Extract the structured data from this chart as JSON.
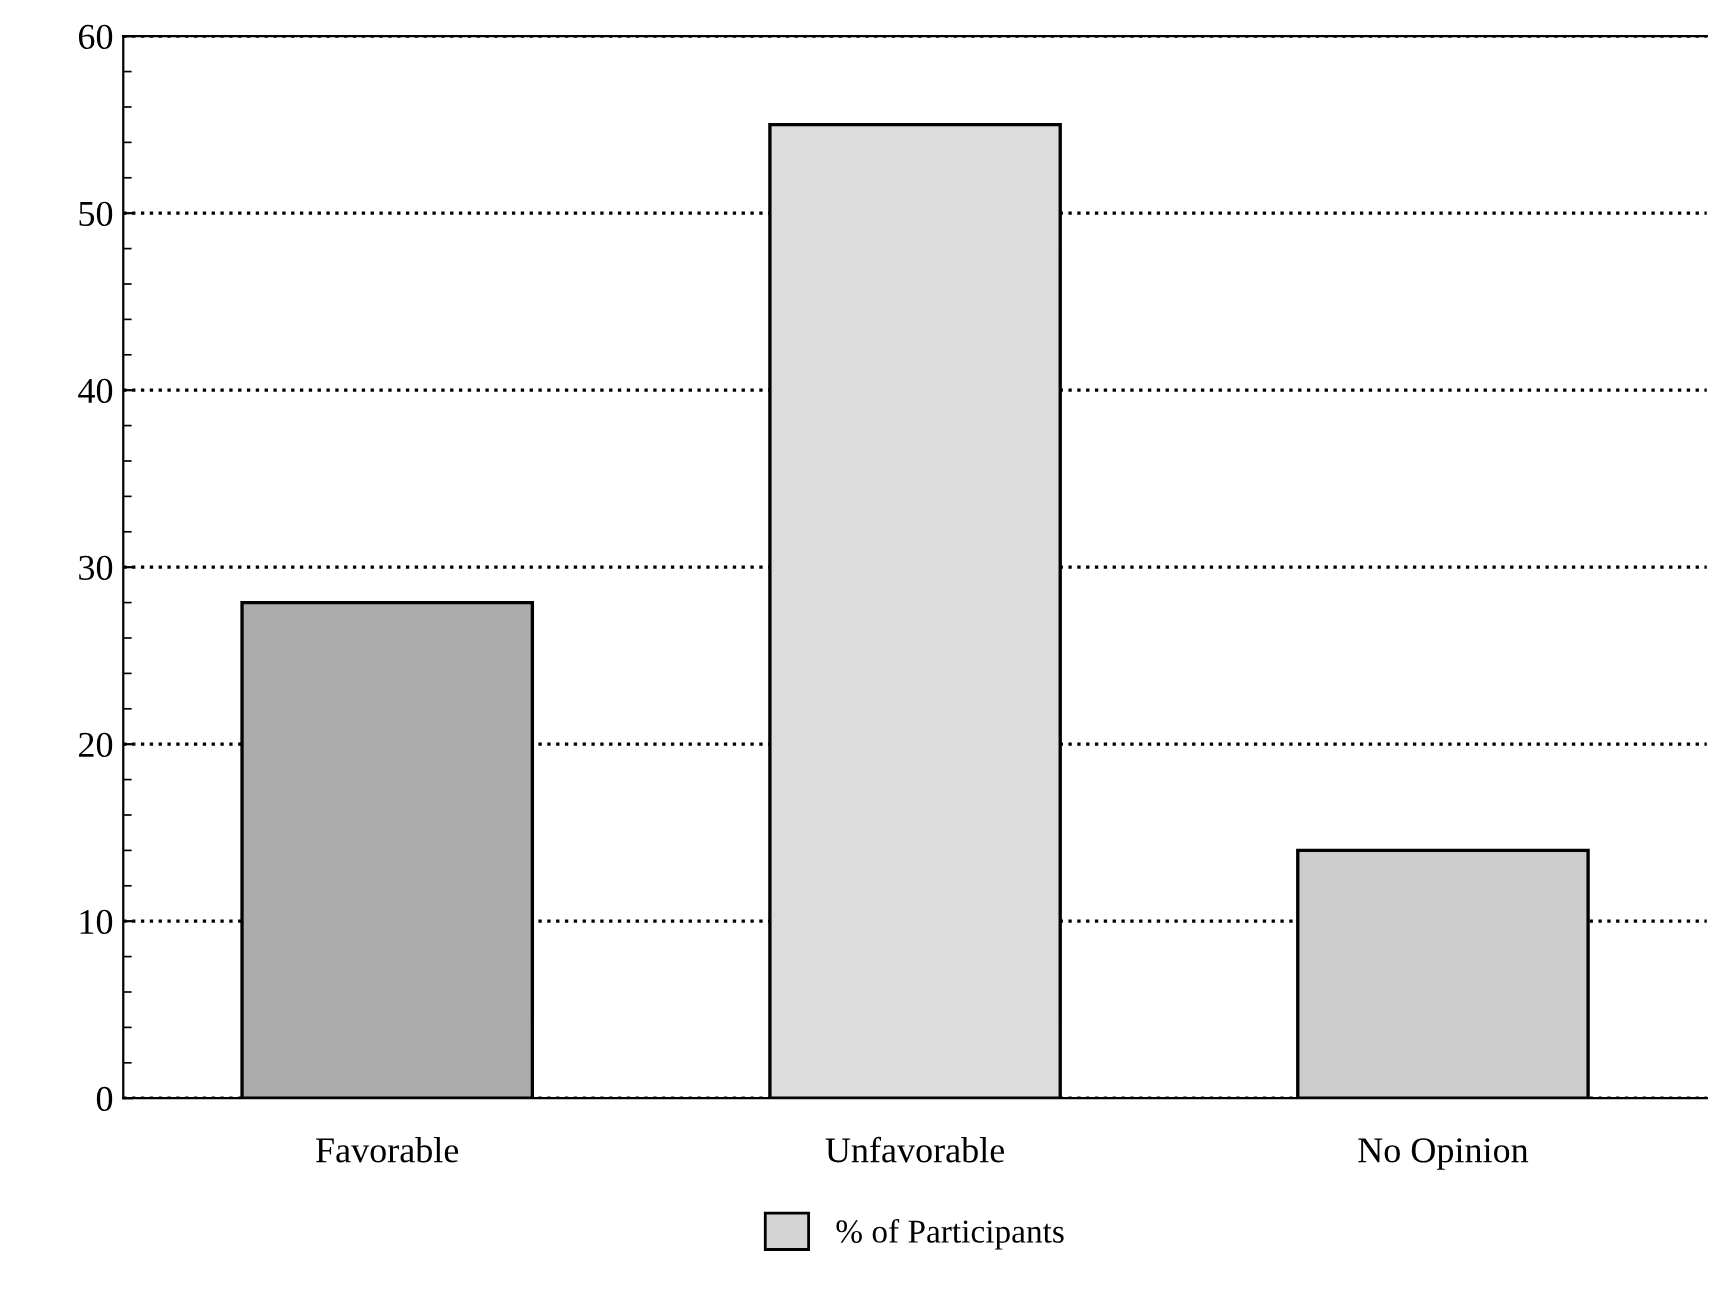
{
  "chart_data": {
    "type": "bar",
    "categories": [
      "Favorable",
      "Unfavorable",
      "No Opinion"
    ],
    "series": [
      {
        "name": "% of Participants",
        "color": "#d4d4d4",
        "colors": [
          "#acacac",
          "#dcdcdc",
          "#cdcdcd"
        ],
        "values": [
          28,
          55,
          14
        ]
      }
    ],
    "ylim": [
      0,
      60
    ],
    "yticks": [
      0,
      10,
      20,
      30,
      40,
      50,
      60
    ],
    "grid": "y",
    "line_style": "dotted",
    "legend": "bottom"
  }
}
